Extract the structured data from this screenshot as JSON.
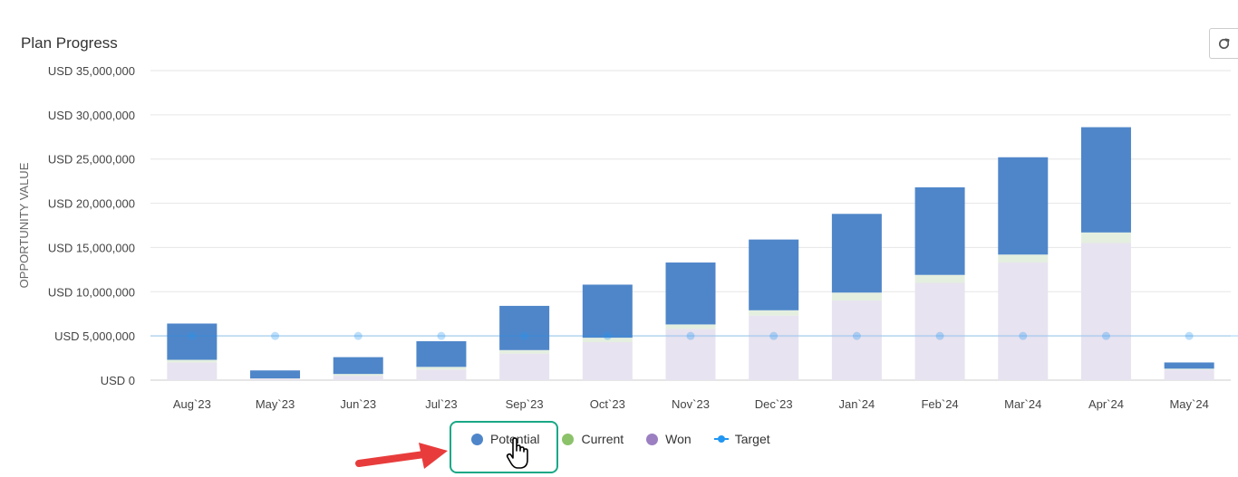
{
  "header": {
    "title": "Plan Progress"
  },
  "toolbar": {
    "refresh_icon": "refresh-icon"
  },
  "chart_data": {
    "type": "bar",
    "stacked": true,
    "ylabel": "OPPORTUNITY VALUE",
    "ylim": [
      0,
      35000000
    ],
    "yticks": [
      "USD 0",
      "USD 5,000,000",
      "USD 10,000,000",
      "USD 15,000,000",
      "USD 20,000,000",
      "USD 25,000,000",
      "USD 30,000,000",
      "USD 35,000,000"
    ],
    "categories": [
      "Aug`23",
      "May`23",
      "Jun`23",
      "Jul`23",
      "Sep`23",
      "Oct`23",
      "Nov`23",
      "Dec`23",
      "Jan`24",
      "Feb`24",
      "Mar`24",
      "Apr`24",
      "May`24"
    ],
    "series": [
      {
        "name": "Won",
        "color": "#e8e3f0",
        "values": [
          2000000,
          150000,
          500000,
          1200000,
          3000000,
          4300000,
          5800000,
          7300000,
          9000000,
          11000000,
          13300000,
          15500000,
          1200000
        ]
      },
      {
        "name": "Current",
        "color": "#e4efe0",
        "values": [
          300000,
          50000,
          200000,
          300000,
          400000,
          500000,
          500000,
          600000,
          900000,
          900000,
          900000,
          1200000,
          100000
        ]
      },
      {
        "name": "Potential",
        "color": "#4f86c9",
        "values": [
          4100000,
          900000,
          1900000,
          2900000,
          5000000,
          6000000,
          7000000,
          8000000,
          8900000,
          9900000,
          11000000,
          11900000,
          700000
        ]
      }
    ],
    "target": {
      "name": "Target",
      "color": "#2196f3",
      "value": 5000000
    },
    "legend": {
      "placement": "bottom",
      "items": [
        "Potential",
        "Current",
        "Won",
        "Target"
      ]
    },
    "legend_colors": {
      "Potential": "#4f86c9",
      "Current": "#8cc26a",
      "Won": "#9b7fc1",
      "Target": "#2196f3"
    },
    "grid": true
  },
  "annotation": {
    "arrow_color": "#e83c3c",
    "highlight_color": "#19a886"
  }
}
